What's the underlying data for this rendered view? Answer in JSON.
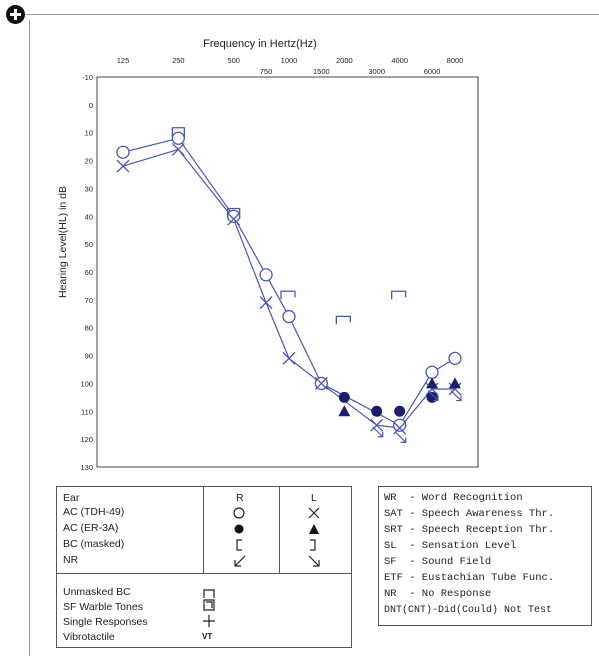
{
  "chart_data": {
    "type": "line",
    "title": "Frequency in Hertz(Hz)",
    "ylabel": "Hearing Level(HL) in dB",
    "x_ticks_top": [
      "125",
      "250",
      "500",
      "1000",
      "2000",
      "4000",
      "8000"
    ],
    "x_ticks_bottom": [
      "750",
      "1500",
      "3000",
      "6000"
    ],
    "y_ticks": [
      "-10",
      "0",
      "10",
      "20",
      "30",
      "40",
      "50",
      "60",
      "70",
      "80",
      "90",
      "100",
      "110",
      "120",
      "130"
    ],
    "ylim": [
      -10,
      130
    ],
    "y_inverted": true,
    "grid": false,
    "series": [
      {
        "name": "AC (TDH-49)",
        "ear": "R",
        "color": "#4b56b8",
        "marker": "circle",
        "points": [
          [
            125,
            17
          ],
          [
            250,
            12
          ],
          [
            500,
            40
          ],
          [
            750,
            61
          ],
          [
            1000,
            76
          ],
          [
            1500,
            100
          ],
          [
            4000,
            115
          ],
          [
            6000,
            96
          ],
          [
            8000,
            91
          ]
        ]
      },
      {
        "name": "AC (TDH-49)",
        "ear": "L",
        "color": "#4b56b8",
        "marker": "x",
        "points": [
          [
            125,
            22
          ],
          [
            250,
            16
          ],
          [
            500,
            41
          ],
          [
            750,
            71
          ],
          [
            1000,
            91
          ],
          [
            1500,
            100
          ],
          [
            3000,
            115
          ],
          [
            4000,
            116
          ],
          [
            6000,
            102
          ],
          [
            8000,
            102
          ]
        ]
      },
      {
        "name": "AC (ER-3A)",
        "ear": "R",
        "color": "#1a1f6a",
        "marker": "filled-circle",
        "points": [
          [
            2000,
            105
          ],
          [
            3000,
            110
          ],
          [
            4000,
            110
          ],
          [
            6000,
            105
          ]
        ]
      },
      {
        "name": "AC (ER-3A)",
        "ear": "L",
        "color": "#1a1f6a",
        "marker": "filled-triangle",
        "points": [
          [
            2000,
            110
          ],
          [
            6000,
            100
          ],
          [
            8000,
            100
          ]
        ]
      },
      {
        "name": "Unmasked BC",
        "color": "#4b56b8",
        "marker": "unmasked-bc",
        "points": [
          [
            250,
            10
          ],
          [
            500,
            39
          ]
        ]
      },
      {
        "name": "BC (masked)",
        "ear": "L",
        "color": "#4b56b8",
        "marker": "bracket-right",
        "points": [
          [
            1000,
            68
          ],
          [
            2000,
            77
          ],
          [
            4000,
            68
          ]
        ]
      },
      {
        "name": "NR",
        "color": "#4b56b8",
        "marker": "nr-arrow",
        "points": [
          [
            3000,
            117
          ],
          [
            4000,
            119
          ],
          [
            6000,
            104
          ],
          [
            8000,
            104
          ]
        ]
      }
    ]
  },
  "legend": {
    "ear_label": "Ear",
    "right_label": "R",
    "left_label": "L",
    "rows": [
      {
        "label": "AC (TDH-49)",
        "right_symbol": "○",
        "left_symbol": "╳"
      },
      {
        "label": "AC (ER-3A)",
        "right_symbol": "●",
        "left_symbol": "▲"
      },
      {
        "label": "BC (masked)",
        "right_symbol": "[",
        "left_symbol": "]"
      },
      {
        "label": "NR",
        "right_symbol": "↙",
        "left_symbol": "↘"
      }
    ],
    "other_rows": [
      {
        "label": "Unmasked BC"
      },
      {
        "label": "SF Warble Tones"
      },
      {
        "label": "Single Responses"
      },
      {
        "label": "Vibrotactile",
        "symbol": "VT"
      }
    ]
  },
  "abbreviations": [
    "WR  - Word Recognition",
    "SAT - Speech Awareness Thr.",
    "SRT - Speech Reception Thr.",
    "SL  - Sensation Level",
    "SF  - Sound Field",
    "ETF - Eustachian Tube Func.",
    "NR  - No Response",
    "DNT(CNT)-Did(Could) Not Test"
  ]
}
